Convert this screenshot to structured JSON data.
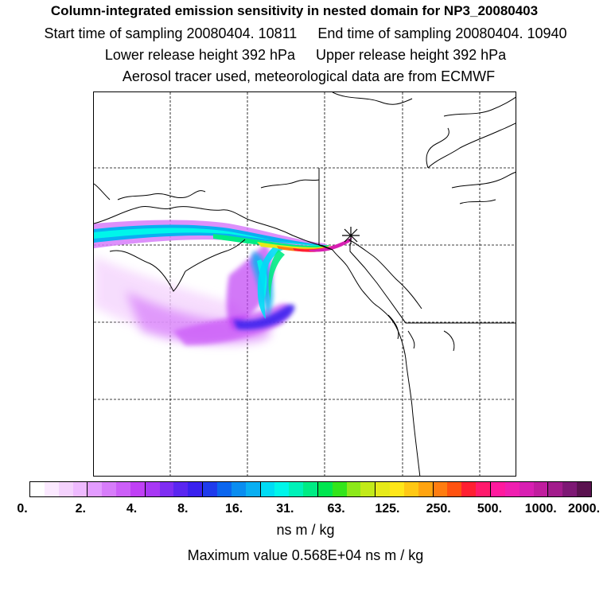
{
  "title": {
    "line1": "Column-integrated emission sensitivity in nested domain for NP3_20080403",
    "start_label": "Start time of sampling 20080404. 10811",
    "end_label": "End time of sampling 20080404. 10940",
    "lower_label": "Lower release height  392 hPa",
    "upper_label": "Upper release height  392 hPa",
    "line4": "Aerosol tracer used, meteorological data are from ECMWF"
  },
  "colorbar": {
    "tick_labels": [
      "0.",
      "2.",
      "4.",
      "8.",
      "16.",
      "31.",
      "63.",
      "125.",
      "250.",
      "500.",
      "1000.",
      "2000."
    ],
    "colors": [
      "#ffffff",
      "#fbe9ff",
      "#f4d2fd",
      "#eebaff",
      "#e39cff",
      "#d77dfa",
      "#cc5ff8",
      "#c040f5",
      "#a838f4",
      "#7f2ef2",
      "#5b26f0",
      "#3a21ee",
      "#1f3bec",
      "#0b66ee",
      "#0a8df0",
      "#0aaff2",
      "#00dcf5",
      "#00f6ea",
      "#00f2b9",
      "#00ec84",
      "#00e64f",
      "#33e51b",
      "#8ce81a",
      "#c2ea19",
      "#e6ea19",
      "#ffe719",
      "#ffc814",
      "#ffa411",
      "#ff7d11",
      "#ff5211",
      "#ff1f32",
      "#ff1a6c",
      "#ff1a9e",
      "#f01fb0",
      "#d81fb2",
      "#c01d9e",
      "#a21c8c",
      "#7d1874",
      "#5a124f"
    ],
    "units": "ns m / kg"
  },
  "max_value_label": "Maximum value  0.568E+04 ns m / kg",
  "map": {
    "receptor_marker": "asterisk-icon",
    "plume_colors": {
      "low": "#c040f5",
      "mid": "#3a21ee",
      "cyan": "#00f6ea",
      "green": "#00ec84",
      "yellow": "#ffe719",
      "red": "#ff1f32",
      "magenta": "#d81fb2"
    }
  }
}
